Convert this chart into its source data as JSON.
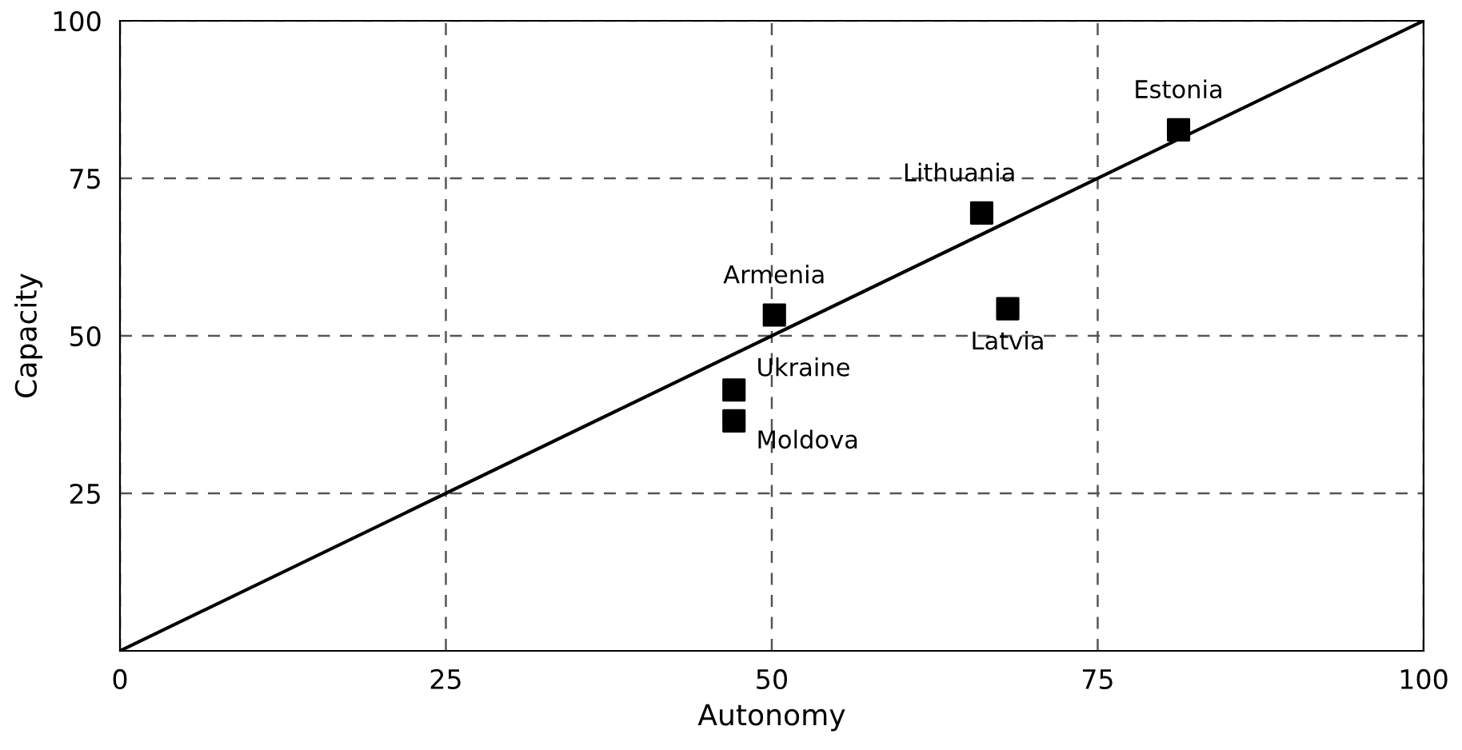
{
  "chart_data": {
    "type": "scatter",
    "xlabel": "Autonomy",
    "ylabel": "Capacity",
    "xlim": [
      0,
      100
    ],
    "ylim": [
      0,
      100
    ],
    "xticks": [
      0,
      25,
      50,
      75,
      100
    ],
    "yticks": [
      25,
      50,
      75,
      100
    ],
    "grid": true,
    "series": [
      {
        "marker": "square",
        "color": "#000000",
        "x": [
          81.2,
          66.1,
          68.1,
          50.2,
          47.1,
          47.1
        ],
        "values": [
          82.7,
          69.5,
          54.3,
          53.3,
          41.4,
          36.5
        ]
      },
      {
        "type": "line",
        "marker": "none",
        "color": "#000000",
        "x": [
          0,
          100
        ],
        "values": [
          0,
          100
        ]
      }
    ],
    "annotations": [
      {
        "text": "Estonia",
        "x": 81.2,
        "y": 82.7
      },
      {
        "text": "Lithuania",
        "x": 66.1,
        "y": 69.5
      },
      {
        "text": "Latvia",
        "x": 68.1,
        "y": 54.3
      },
      {
        "text": "Armenia",
        "x": 50.2,
        "y": 53.3
      },
      {
        "text": "Ukraine",
        "x": 47.1,
        "y": 41.4
      },
      {
        "text": "Moldova",
        "x": 47.1,
        "y": 36.5
      }
    ]
  }
}
